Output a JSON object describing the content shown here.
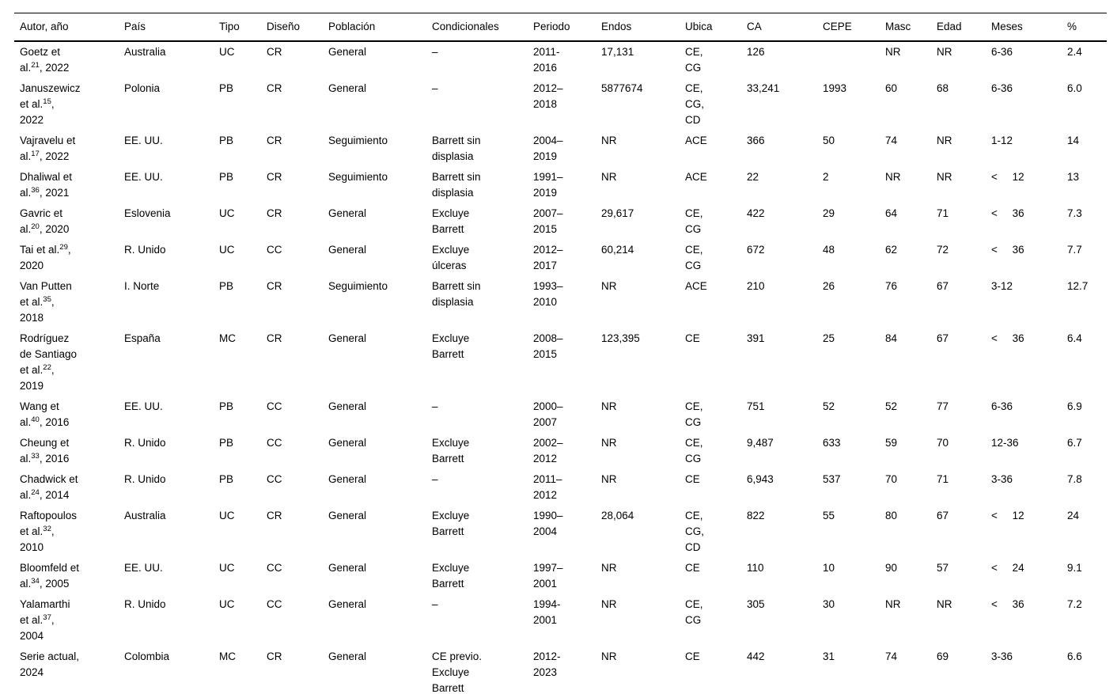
{
  "table": {
    "columns": [
      {
        "key": "autor",
        "label": "Autor, año"
      },
      {
        "key": "pais",
        "label": "País"
      },
      {
        "key": "tipo",
        "label": "Tipo"
      },
      {
        "key": "diseno",
        "label": "Diseño"
      },
      {
        "key": "poblacion",
        "label": "Población"
      },
      {
        "key": "condicionales",
        "label": "Condicionales"
      },
      {
        "key": "periodo",
        "label": "Periodo"
      },
      {
        "key": "endos",
        "label": "Endos"
      },
      {
        "key": "ubica",
        "label": "Ubica"
      },
      {
        "key": "ca",
        "label": "CA"
      },
      {
        "key": "cepe",
        "label": "CEPE"
      },
      {
        "key": "masc",
        "label": "Masc"
      },
      {
        "key": "edad",
        "label": "Edad"
      },
      {
        "key": "meses",
        "label": "Meses"
      },
      {
        "key": "pct",
        "label": "%"
      }
    ],
    "rows": [
      {
        "author_pre": "Goetz et\nal.",
        "author_sup": "21",
        "author_post": ", 2022",
        "cells": [
          "Australia",
          "UC",
          "CR",
          "General",
          "–",
          "2011-\n2016",
          "17,131",
          "CE,\nCG",
          "126",
          "",
          "NR",
          "NR",
          "6-36",
          "2.4"
        ]
      },
      {
        "author_pre": "Januszewicz\net al.",
        "author_sup": "15",
        "author_post": ",\n2022",
        "cells": [
          "Polonia",
          "PB",
          "CR",
          "General",
          "–",
          "2012–\n2018",
          "5877674",
          "CE,\nCG,\nCD",
          "33,241",
          "1993",
          "60",
          "68",
          "6-36",
          "6.0"
        ]
      },
      {
        "author_pre": "Vajravelu et\nal.",
        "author_sup": "17",
        "author_post": ", 2022",
        "cells": [
          "EE. UU.",
          "PB",
          "CR",
          "Seguimiento",
          "Barrett sin\ndisplasia",
          "2004–\n2019",
          "NR",
          "ACE",
          "366",
          "50",
          "74",
          "NR",
          "1-12",
          "14"
        ]
      },
      {
        "author_pre": "Dhaliwal et\nal.",
        "author_sup": "36",
        "author_post": ", 2021",
        "cells": [
          "EE. UU.",
          "PB",
          "CR",
          "Seguimiento",
          "Barrett sin\ndisplasia",
          "1991–\n2019",
          "NR",
          "ACE",
          "22",
          "2",
          "NR",
          "NR",
          "<     12",
          "13"
        ]
      },
      {
        "author_pre": "Gavric et\nal.",
        "author_sup": "20",
        "author_post": ", 2020",
        "cells": [
          "Eslovenia",
          "UC",
          "CR",
          "General",
          "Excluye\nBarrett",
          "2007–\n2015",
          "29,617",
          "CE,\nCG",
          "422",
          "29",
          "64",
          "71",
          "<     36",
          "7.3"
        ]
      },
      {
        "author_pre": "Tai et al.",
        "author_sup": "29",
        "author_post": ",\n2020",
        "cells": [
          "R. Unido",
          "UC",
          "CC",
          "General",
          "Excluye\núlceras",
          "2012–\n2017",
          "60,214",
          "CE,\nCG",
          "672",
          "48",
          "62",
          "72",
          "<     36",
          "7.7"
        ]
      },
      {
        "author_pre": "Van Putten\net al.",
        "author_sup": "35",
        "author_post": ",\n2018",
        "cells": [
          "I. Norte",
          "PB",
          "CR",
          "Seguimiento",
          "Barrett sin\ndisplasia",
          "1993–\n2010",
          "NR",
          "ACE",
          "210",
          "26",
          "76",
          "67",
          "3-12",
          "12.7"
        ]
      },
      {
        "author_pre": "Rodríguez\nde Santiago\net al.",
        "author_sup": "22",
        "author_post": ",\n2019",
        "cells": [
          "España",
          "MC",
          "CR",
          "General",
          "Excluye\nBarrett",
          "2008–\n2015",
          "123,395",
          "CE",
          "391",
          "25",
          "84",
          "67",
          "<     36",
          "6.4"
        ]
      },
      {
        "author_pre": "Wang et\nal.",
        "author_sup": "40",
        "author_post": ", 2016",
        "cells": [
          "EE. UU.",
          "PB",
          "CC",
          "General",
          "–",
          "2000–\n2007",
          "NR",
          "CE,\nCG",
          "751",
          "52",
          "52",
          "77",
          "6-36",
          "6.9"
        ]
      },
      {
        "author_pre": "Cheung et\nal.",
        "author_sup": "33",
        "author_post": ", 2016",
        "cells": [
          "R. Unido",
          "PB",
          "CC",
          "General",
          "Excluye\nBarrett",
          "2002–\n2012",
          "NR",
          "CE,\nCG",
          "9,487",
          "633",
          "59",
          "70",
          "12-36",
          "6.7"
        ]
      },
      {
        "author_pre": "Chadwick et\nal.",
        "author_sup": "24",
        "author_post": ", 2014",
        "cells": [
          "R. Unido",
          "PB",
          "CC",
          "General",
          "–",
          "2011–\n2012",
          "NR",
          "CE",
          "6,943",
          "537",
          "70",
          "71",
          "3-36",
          "7.8"
        ]
      },
      {
        "author_pre": "Raftopoulos\net al.",
        "author_sup": "32",
        "author_post": ",\n2010",
        "cells": [
          "Australia",
          "UC",
          "CR",
          "General",
          "Excluye\nBarrett",
          "1990–\n2004",
          "28,064",
          "CE,\nCG,\nCD",
          "822",
          "55",
          "80",
          "67",
          "<     12",
          "24"
        ]
      },
      {
        "author_pre": "Bloomfeld et\nal.",
        "author_sup": "34",
        "author_post": ", 2005",
        "cells": [
          "EE. UU.",
          "UC",
          "CC",
          "General",
          "Excluye\nBarrett",
          "1997–\n2001",
          "NR",
          "CE",
          "110",
          "10",
          "90",
          "57",
          "<     24",
          "9.1"
        ]
      },
      {
        "author_pre": "Yalamarthi\net al.",
        "author_sup": "37",
        "author_post": ",\n2004",
        "cells": [
          "R. Unido",
          "UC",
          "CC",
          "General",
          "–",
          "1994-\n2001",
          "NR",
          "CE,\nCG",
          "305",
          "30",
          "NR",
          "NR",
          "<     36",
          "7.2"
        ]
      },
      {
        "author_pre": "Serie actual,\n2024",
        "author_sup": "",
        "author_post": "",
        "cells": [
          "Colombia",
          "MC",
          "CR",
          "General",
          "CE previo.\nExcluye\nBarrett",
          "2012-\n2023",
          "NR",
          "CE",
          "442",
          "31",
          "74",
          "69",
          "3-36",
          "6.6"
        ]
      }
    ]
  }
}
